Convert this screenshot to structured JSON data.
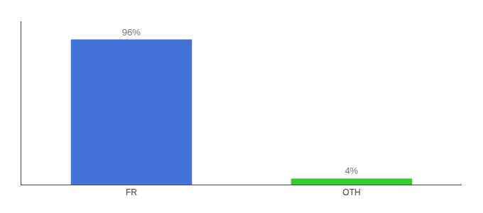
{
  "chart_data": {
    "type": "bar",
    "categories": [
      "FR",
      "OTH"
    ],
    "values": [
      96,
      4
    ],
    "value_labels": [
      "96%",
      "4%"
    ],
    "colors": [
      "#4472db",
      "#33cc33"
    ],
    "ylim": [
      0,
      108
    ],
    "grid": false,
    "data_labels": true,
    "tick_labels": "x"
  }
}
